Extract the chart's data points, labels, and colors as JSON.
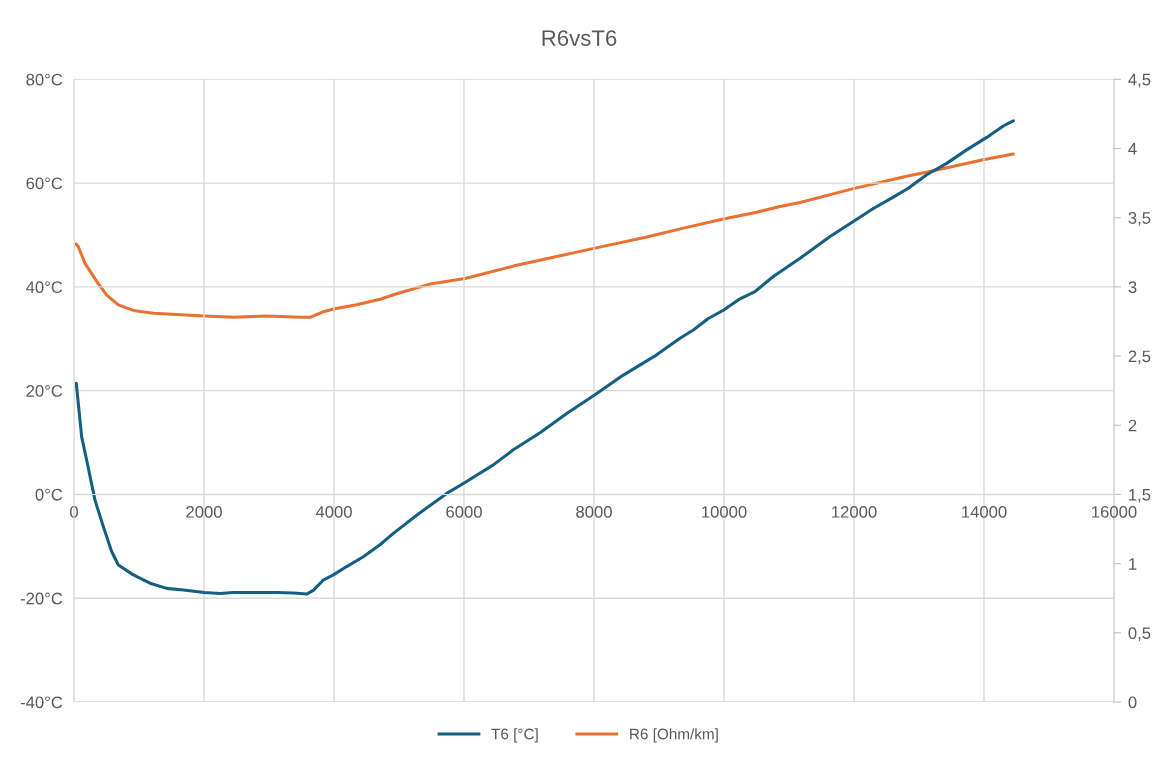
{
  "chart_data": {
    "type": "line",
    "title": "R6vsT6",
    "xlim": [
      0,
      16000
    ],
    "xticks": [
      0,
      2000,
      4000,
      6000,
      8000,
      10000,
      12000,
      14000,
      16000
    ],
    "ylim": [
      -40,
      80
    ],
    "yticks": [
      {
        "value": -40,
        "label": "-40°C"
      },
      {
        "value": -20,
        "label": "-20°C"
      },
      {
        "value": 0,
        "label": "0°C"
      },
      {
        "value": 20,
        "label": "20°C"
      },
      {
        "value": 40,
        "label": "40°C"
      },
      {
        "value": 60,
        "label": "60°C"
      },
      {
        "value": 80,
        "label": "80°C"
      }
    ],
    "y2lim": [
      0,
      4.5
    ],
    "y2ticks": [
      0,
      {
        "value": 0.5,
        "label": "0,5"
      },
      1,
      {
        "value": 1.5,
        "label": "1,5"
      },
      2,
      {
        "value": 2.5,
        "label": "2,5"
      },
      3,
      {
        "value": 3.5,
        "label": "3,5"
      },
      4,
      {
        "value": 4.5,
        "label": "4,5"
      }
    ],
    "grid": true,
    "legend": "bottom",
    "marker": "none",
    "line_style": "solid",
    "series": [
      {
        "name": "T6 [°C]",
        "color": "#156082",
        "x": [
          35,
          118,
          205,
          323,
          451,
          579,
          682,
          913,
          1169,
          1426,
          1682,
          2005,
          2246,
          2451,
          2759,
          3118,
          3374,
          3579,
          3682,
          3836,
          3990,
          4195,
          4451,
          4708,
          4913,
          5272,
          5734,
          6015,
          6451,
          6759,
          7170,
          7580,
          8015,
          8451,
          8964,
          9323,
          9528,
          9759,
          9990,
          10246,
          10477,
          10759,
          11170,
          11631,
          11990,
          12297,
          12605,
          12836,
          13118,
          13426,
          13733,
          14041,
          14297,
          14451
        ],
        "values": [
          21.4,
          11.1,
          6.0,
          -1.1,
          -6.2,
          -11.0,
          -13.6,
          -15.5,
          -17.1,
          -18.1,
          -18.4,
          -18.9,
          -19.1,
          -18.9,
          -18.9,
          -18.9,
          -19.0,
          -19.2,
          -18.5,
          -16.5,
          -15.5,
          -13.9,
          -12.0,
          -9.7,
          -7.5,
          -4.0,
          0.2,
          2.3,
          5.7,
          8.6,
          11.9,
          15.6,
          19.2,
          23.0,
          26.9,
          30.1,
          31.7,
          33.9,
          35.5,
          37.7,
          39.1,
          42.0,
          45.5,
          49.7,
          52.6,
          55.1,
          57.3,
          59.0,
          61.6,
          63.8,
          66.4,
          68.8,
          71.0,
          72.0
        ]
      },
      {
        "name": "R6 [Ohm/km]",
        "color": "#e97132",
        "axis": "y2",
        "x": [
          31,
          66,
          169,
          349,
          503,
          682,
          913,
          1220,
          1579,
          2005,
          2451,
          2964,
          3477,
          3631,
          3836,
          3990,
          4349,
          4708,
          4964,
          5477,
          6015,
          6759,
          7426,
          8015,
          8810,
          9426,
          9990,
          10503,
          10862,
          11170,
          11990,
          12810,
          13220,
          14005,
          14451
        ],
        "values": [
          3.31,
          3.29,
          3.17,
          3.04,
          2.94,
          2.87,
          2.83,
          2.81,
          2.8,
          2.79,
          2.78,
          2.79,
          2.78,
          2.78,
          2.82,
          2.84,
          2.87,
          2.91,
          2.95,
          3.02,
          3.06,
          3.15,
          3.22,
          3.28,
          3.36,
          3.43,
          3.49,
          3.54,
          3.58,
          3.61,
          3.71,
          3.8,
          3.84,
          3.92,
          3.96
        ]
      }
    ]
  }
}
